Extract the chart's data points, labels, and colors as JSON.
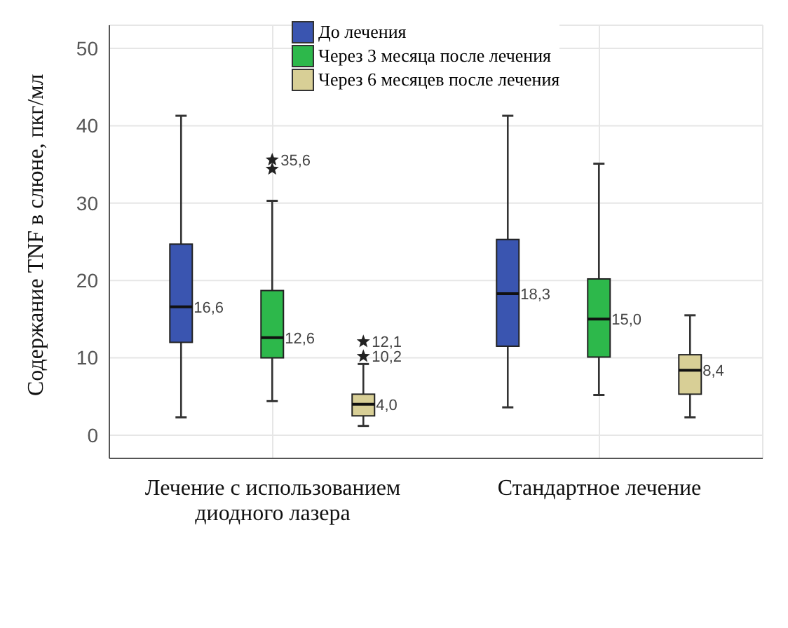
{
  "chart_data": {
    "type": "box",
    "ylabel": "Содержание TNF в слюне, пкг/мл",
    "categories": [
      "Лечение с использованием диодного лазера",
      "Стандартное лечение"
    ],
    "series": [
      {
        "name": "До лечения",
        "color": "#3a55b0",
        "value_labels": [
          "16,6",
          "18,3"
        ],
        "boxes": [
          {
            "low": 2.3,
            "q1": 12.0,
            "median": 16.6,
            "q3": 24.7,
            "high": 41.3
          },
          {
            "low": 3.6,
            "q1": 11.5,
            "median": 18.3,
            "q3": 25.3,
            "high": 41.3
          }
        ]
      },
      {
        "name": "Через 3 месяца после лечения",
        "color": "#2db84b",
        "value_labels": [
          "12,6",
          "15,0"
        ],
        "boxes": [
          {
            "low": 4.4,
            "q1": 10.0,
            "median": 12.6,
            "q3": 18.7,
            "high": 30.3,
            "outliers": [
              34.4,
              35.6
            ]
          },
          {
            "low": 5.2,
            "q1": 10.1,
            "median": 15.0,
            "q3": 20.2,
            "high": 35.1
          }
        ]
      },
      {
        "name": "Через 6 месяцев после лечения",
        "color": "#d8cf96",
        "value_labels": [
          "4,0",
          "8,4"
        ],
        "boxes": [
          {
            "low": 1.2,
            "q1": 2.5,
            "median": 4.0,
            "q3": 5.3,
            "high": 9.2,
            "outliers": [
              10.2,
              12.1
            ]
          },
          {
            "low": 2.3,
            "q1": 5.3,
            "median": 8.4,
            "q3": 10.4,
            "high": 15.5
          }
        ]
      }
    ],
    "annotations": [
      "35,6",
      "12,1",
      "10,2"
    ],
    "ylim": [
      -3,
      53
    ],
    "yticks": [
      0,
      10,
      20,
      30,
      40,
      50
    ],
    "grid": true,
    "legend": "top",
    "marker": "star"
  }
}
